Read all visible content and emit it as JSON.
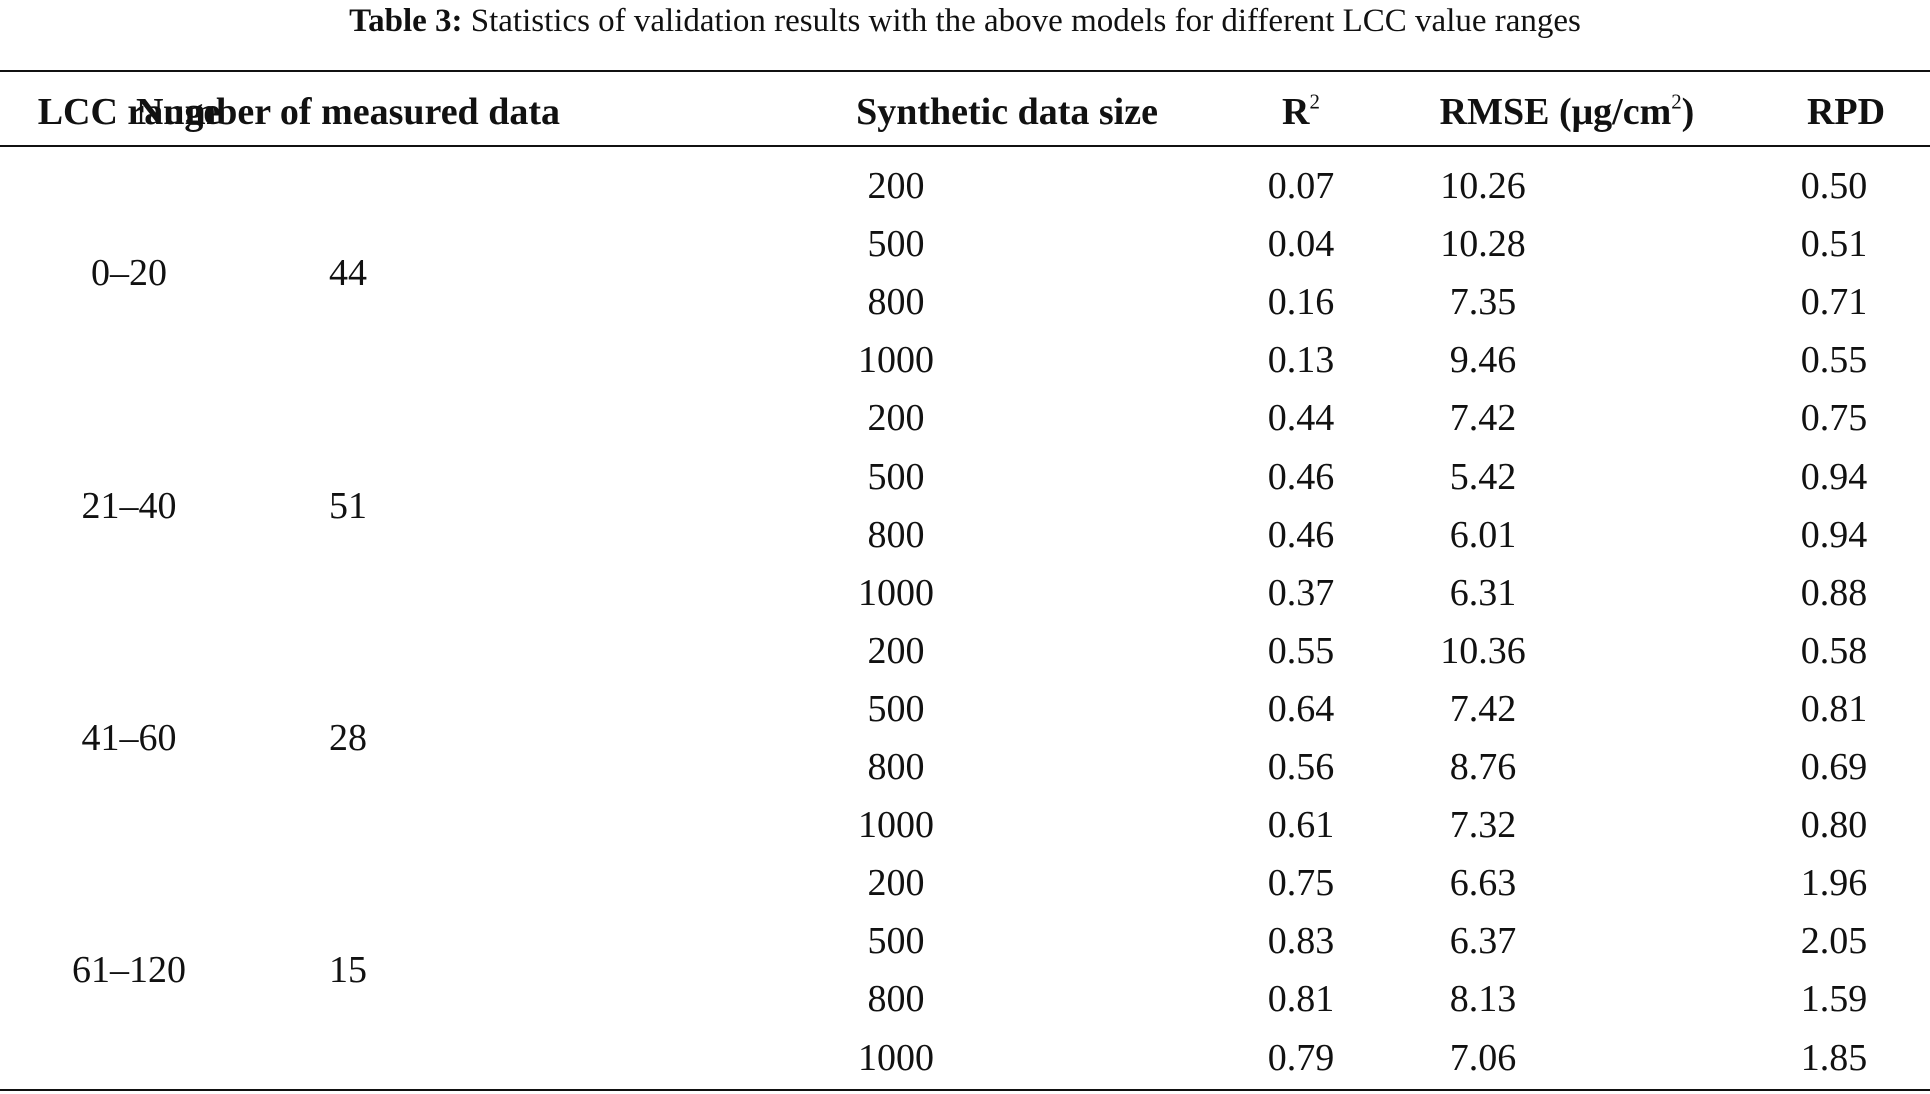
{
  "caption": {
    "label": "Table 3:",
    "text": "Statistics of validation results with the above models for different LCC value ranges"
  },
  "table": {
    "header": [
      {
        "text": "LCC range"
      },
      {
        "text": "Number of measured data"
      },
      {
        "text": "Synthetic data size"
      },
      {
        "text": "R",
        "sup": "2"
      },
      {
        "text": "RMSE (μg/cm",
        "sup": "2",
        "after": ")"
      },
      {
        "text": "RPD"
      }
    ],
    "groups": [
      {
        "range": "0–20",
        "count": "44",
        "rows": [
          [
            "200",
            "0.07",
            "10.26",
            "0.50"
          ],
          [
            "500",
            "0.04",
            "10.28",
            "0.51"
          ],
          [
            "800",
            "0.16",
            "7.35",
            "0.71"
          ],
          [
            "1000",
            "0.13",
            "9.46",
            "0.55"
          ]
        ]
      },
      {
        "range": "21–40",
        "count": "51",
        "rows": [
          [
            "200",
            "0.44",
            "7.42",
            "0.75"
          ],
          [
            "500",
            "0.46",
            "5.42",
            "0.94"
          ],
          [
            "800",
            "0.46",
            "6.01",
            "0.94"
          ],
          [
            "1000",
            "0.37",
            "6.31",
            "0.88"
          ]
        ]
      },
      {
        "range": "41–60",
        "count": "28",
        "rows": [
          [
            "200",
            "0.55",
            "10.36",
            "0.58"
          ],
          [
            "500",
            "0.64",
            "7.42",
            "0.81"
          ],
          [
            "800",
            "0.56",
            "8.76",
            "0.69"
          ],
          [
            "1000",
            "0.61",
            "7.32",
            "0.80"
          ]
        ]
      },
      {
        "range": "61–120",
        "count": "15",
        "rows": [
          [
            "200",
            "0.75",
            "6.63",
            "1.96"
          ],
          [
            "500",
            "0.83",
            "6.37",
            "2.05"
          ],
          [
            "800",
            "0.81",
            "8.13",
            "1.59"
          ],
          [
            "1000",
            "0.79",
            "7.06",
            "1.85"
          ]
        ]
      }
    ]
  }
}
